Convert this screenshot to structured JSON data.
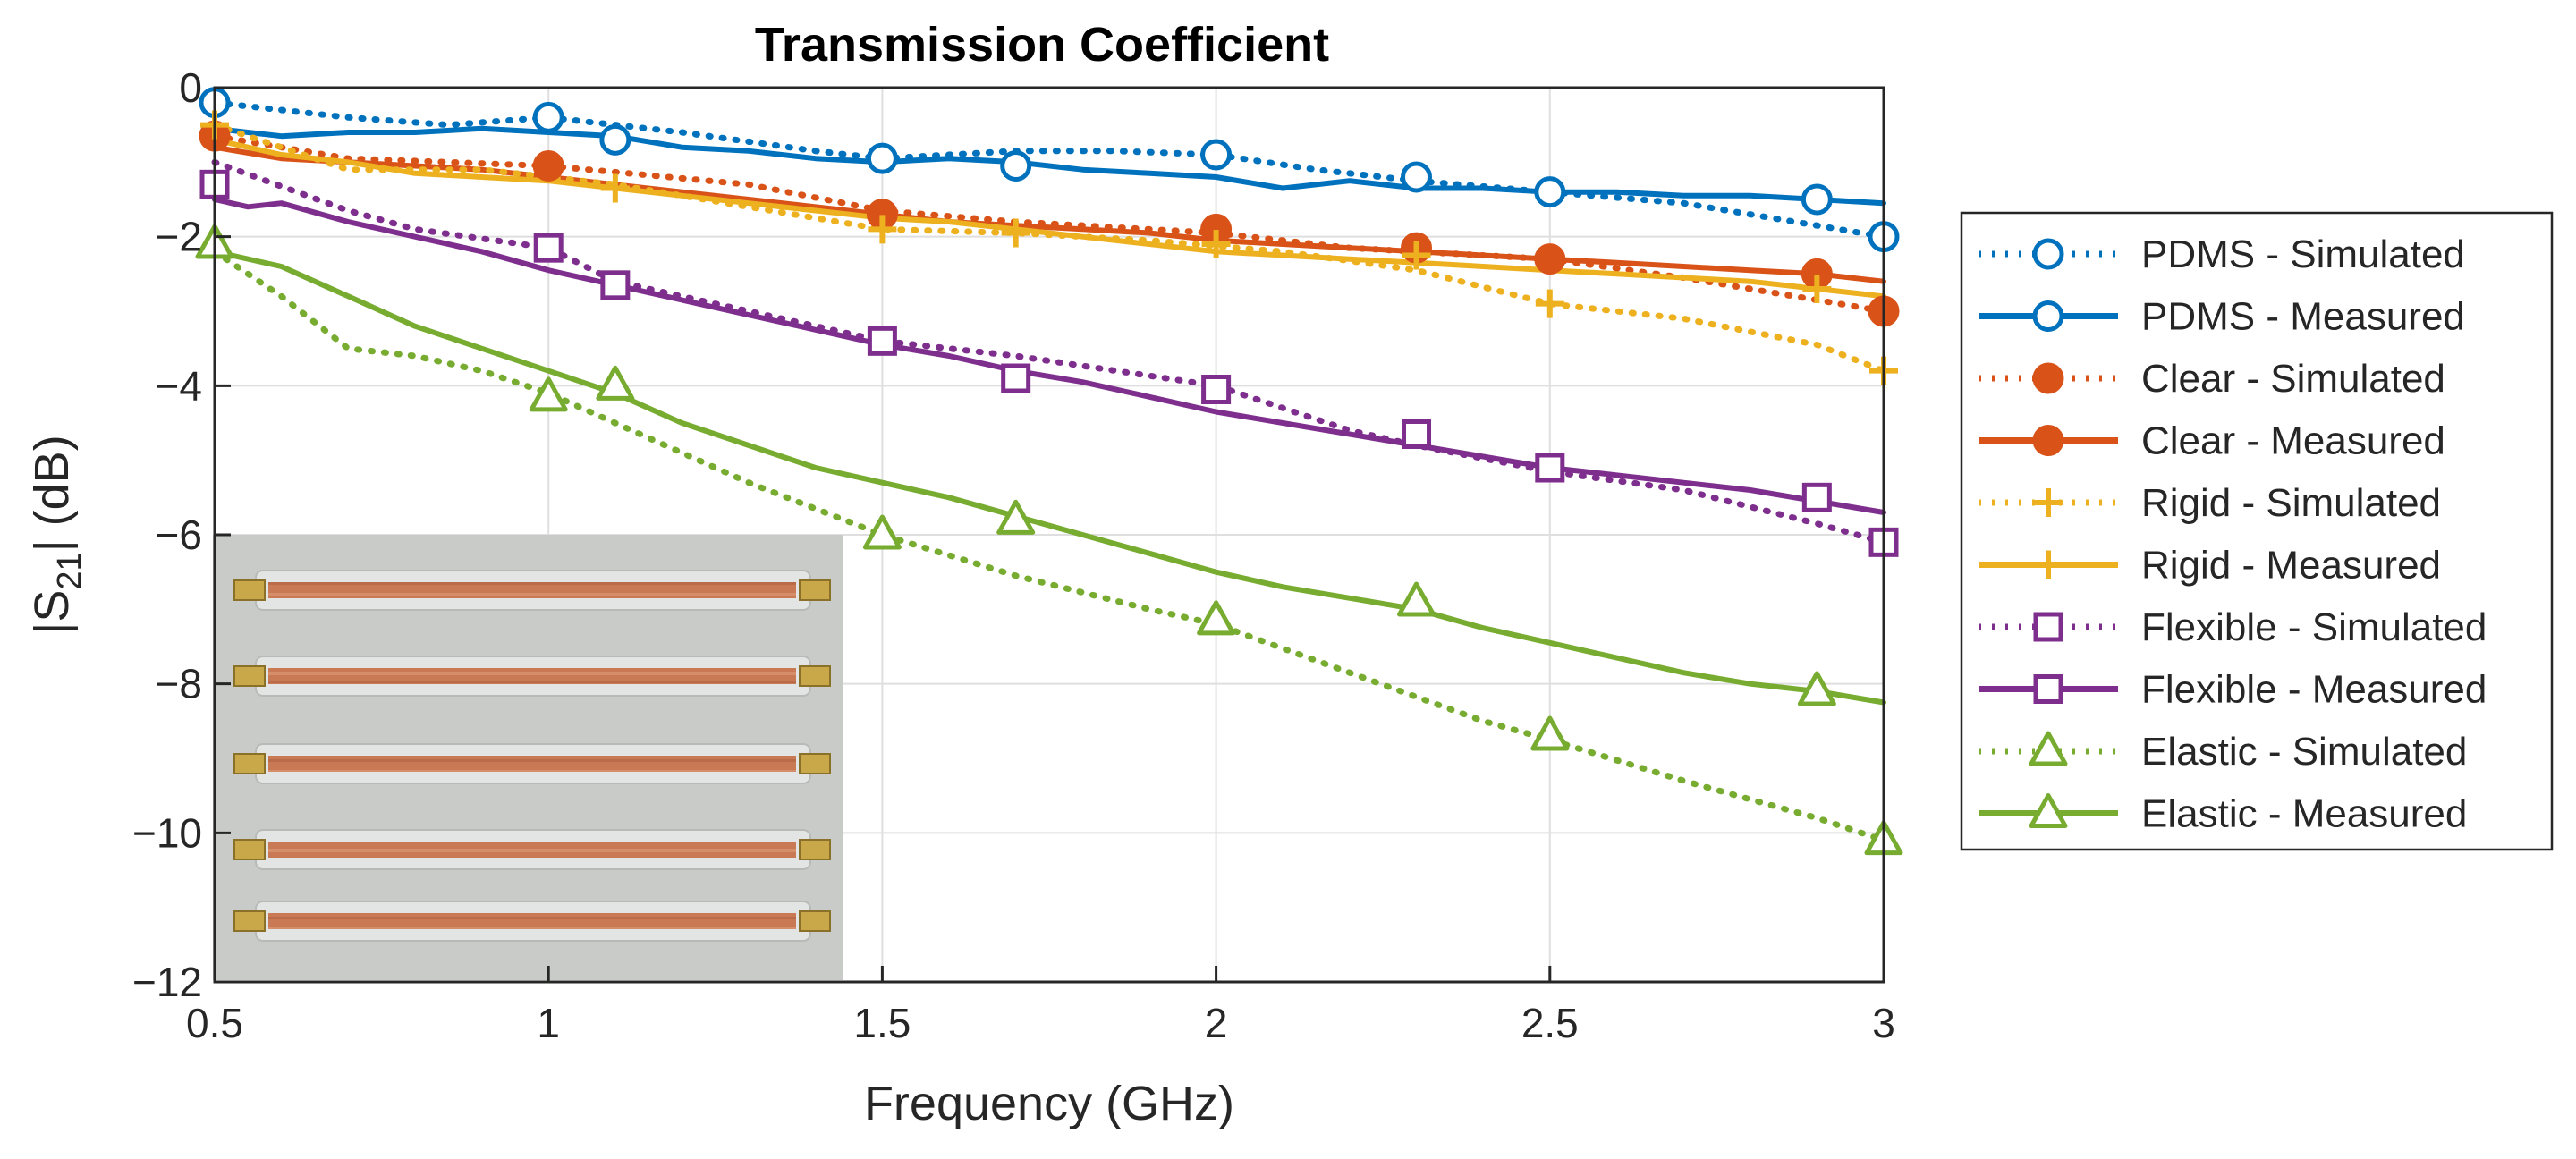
{
  "chart_data": {
    "type": "line",
    "title": "Transmission Coefficient",
    "xlabel": "Frequency (GHz)",
    "ylabel_parts": [
      "|S",
      "21",
      "| (dB)"
    ],
    "xlim": [
      0.5,
      3
    ],
    "ylim": [
      -12,
      0
    ],
    "xticks": [
      0.5,
      1,
      1.5,
      2,
      2.5,
      3
    ],
    "yticks": [
      -12,
      -10,
      -8,
      -6,
      -4,
      -2,
      0
    ],
    "xtick_labels": [
      "0.5",
      "1",
      "1.5",
      "2",
      "2.5",
      "3"
    ],
    "ytick_labels": [
      "−12",
      "−10",
      "−8",
      "−6",
      "−4",
      "−2",
      "0"
    ],
    "grid": true,
    "legend_position": "outside-right",
    "inset": "photo of five copper transmission-line test strips with SMA connectors",
    "series": [
      {
        "name": "PDMS - Simulated",
        "color": "#0072BD",
        "style": "dotted",
        "marker": "circle",
        "marker_fill": false,
        "x": [
          0.5,
          0.7,
          0.85,
          1.0,
          1.2,
          1.4,
          1.5,
          1.6,
          1.7,
          1.85,
          2.0,
          2.15,
          2.3,
          2.5,
          2.7,
          2.9,
          3.0
        ],
        "y": [
          -0.2,
          -0.4,
          -0.5,
          -0.4,
          -0.6,
          -0.85,
          -0.95,
          -0.9,
          -0.85,
          -0.85,
          -0.9,
          -1.1,
          -1.25,
          -1.4,
          -1.55,
          -1.85,
          -2.0
        ],
        "markers_x": [
          0.5,
          1.0,
          1.1,
          1.5,
          1.7,
          2.0,
          2.3,
          2.5,
          2.9,
          3.0
        ],
        "markers_y": [
          -0.2,
          -0.4,
          -0.7,
          -0.95,
          -1.05,
          -0.9,
          -1.2,
          -1.4,
          -1.5,
          -2.0
        ]
      },
      {
        "name": "PDMS - Measured",
        "color": "#0072BD",
        "style": "solid",
        "marker": "circle",
        "marker_fill": false,
        "x": [
          0.5,
          0.6,
          0.7,
          0.8,
          0.9,
          1.0,
          1.1,
          1.2,
          1.3,
          1.4,
          1.5,
          1.6,
          1.7,
          1.8,
          1.9,
          2.0,
          2.1,
          2.2,
          2.3,
          2.4,
          2.5,
          2.6,
          2.7,
          2.8,
          2.9,
          3.0
        ],
        "y": [
          -0.55,
          -0.65,
          -0.6,
          -0.6,
          -0.55,
          -0.6,
          -0.65,
          -0.8,
          -0.85,
          -0.95,
          -1.0,
          -0.95,
          -1.0,
          -1.1,
          -1.15,
          -1.2,
          -1.35,
          -1.25,
          -1.35,
          -1.35,
          -1.4,
          -1.4,
          -1.45,
          -1.45,
          -1.5,
          -1.55
        ]
      },
      {
        "name": "Clear - Simulated",
        "color": "#D95319",
        "style": "dotted",
        "marker": "circle",
        "marker_fill": true,
        "x": [
          0.5,
          0.7,
          1.0,
          1.3,
          1.5,
          1.7,
          2.0,
          2.2,
          2.5,
          2.7,
          2.9,
          3.0
        ],
        "y": [
          -0.65,
          -0.95,
          -1.05,
          -1.3,
          -1.65,
          -1.8,
          -1.95,
          -2.15,
          -2.3,
          -2.55,
          -2.85,
          -3.0
        ],
        "markers_x": [
          0.5,
          1.0,
          1.5,
          2.0,
          2.3,
          2.5,
          2.9,
          3.0
        ],
        "markers_y": [
          -0.65,
          -1.05,
          -1.7,
          -1.9,
          -2.15,
          -2.3,
          -2.5,
          -3.0
        ]
      },
      {
        "name": "Clear - Measured",
        "color": "#D95319",
        "style": "solid",
        "marker": "circle",
        "marker_fill": true,
        "x": [
          0.5,
          0.6,
          0.7,
          0.8,
          0.9,
          1.0,
          1.1,
          1.2,
          1.3,
          1.4,
          1.5,
          1.6,
          1.7,
          1.8,
          1.9,
          2.0,
          2.1,
          2.2,
          2.3,
          2.4,
          2.5,
          2.6,
          2.7,
          2.8,
          2.9,
          3.0
        ],
        "y": [
          -0.8,
          -0.95,
          -1.0,
          -1.05,
          -1.1,
          -1.2,
          -1.3,
          -1.4,
          -1.5,
          -1.6,
          -1.7,
          -1.8,
          -1.85,
          -1.9,
          -1.95,
          -2.05,
          -2.1,
          -2.15,
          -2.2,
          -2.25,
          -2.3,
          -2.35,
          -2.4,
          -2.45,
          -2.5,
          -2.6
        ]
      },
      {
        "name": "Rigid - Simulated",
        "color": "#EDB120",
        "style": "dotted",
        "marker": "plus",
        "marker_fill": false,
        "x": [
          0.5,
          0.7,
          0.9,
          1.1,
          1.3,
          1.5,
          1.7,
          1.9,
          2.1,
          2.3,
          2.5,
          2.7,
          2.9,
          3.0
        ],
        "y": [
          -0.5,
          -1.1,
          -1.1,
          -1.3,
          -1.6,
          -1.9,
          -1.95,
          -2.05,
          -2.2,
          -2.45,
          -2.9,
          -3.1,
          -3.45,
          -3.8
        ],
        "markers_x": [
          0.5,
          1.1,
          1.5,
          1.7,
          2.0,
          2.3,
          2.5,
          2.9,
          3.0
        ],
        "markers_y": [
          -0.5,
          -1.35,
          -1.9,
          -1.95,
          -2.1,
          -2.25,
          -2.9,
          -2.7,
          -3.8
        ]
      },
      {
        "name": "Rigid - Measured",
        "color": "#EDB120",
        "style": "solid",
        "marker": "plus",
        "marker_fill": false,
        "x": [
          0.5,
          0.6,
          0.7,
          0.8,
          0.9,
          1.0,
          1.1,
          1.2,
          1.3,
          1.4,
          1.5,
          1.6,
          1.7,
          1.8,
          1.9,
          2.0,
          2.1,
          2.2,
          2.3,
          2.4,
          2.5,
          2.6,
          2.7,
          2.8,
          2.9,
          3.0
        ],
        "y": [
          -0.7,
          -0.9,
          -1.0,
          -1.15,
          -1.2,
          -1.25,
          -1.35,
          -1.45,
          -1.55,
          -1.65,
          -1.75,
          -1.8,
          -1.9,
          -2.0,
          -2.1,
          -2.2,
          -2.25,
          -2.3,
          -2.35,
          -2.4,
          -2.45,
          -2.5,
          -2.55,
          -2.6,
          -2.7,
          -2.8
        ]
      },
      {
        "name": "Flexible - Simulated",
        "color": "#7E2F8E",
        "style": "dotted",
        "marker": "square",
        "marker_fill": false,
        "x": [
          0.5,
          0.7,
          0.8,
          1.0,
          1.1,
          1.3,
          1.5,
          1.7,
          2.0,
          2.2,
          2.3,
          2.5,
          2.7,
          2.9,
          3.0
        ],
        "y": [
          -1.0,
          -1.65,
          -1.9,
          -2.15,
          -2.6,
          -3.0,
          -3.4,
          -3.6,
          -4.0,
          -4.6,
          -4.8,
          -5.15,
          -5.4,
          -5.85,
          -6.1
        ],
        "markers_x": [
          0.5,
          1.0,
          1.1,
          1.5,
          1.7,
          2.0,
          2.3,
          2.5,
          2.9,
          3.0
        ],
        "markers_y": [
          -1.3,
          -2.15,
          -2.65,
          -3.4,
          -3.9,
          -4.05,
          -4.65,
          -5.1,
          -5.5,
          -6.1
        ]
      },
      {
        "name": "Flexible - Measured",
        "color": "#7E2F8E",
        "style": "solid",
        "marker": "square",
        "marker_fill": false,
        "x": [
          0.5,
          0.55,
          0.6,
          0.7,
          0.8,
          0.9,
          1.0,
          1.1,
          1.2,
          1.3,
          1.4,
          1.5,
          1.6,
          1.7,
          1.8,
          1.9,
          2.0,
          2.1,
          2.2,
          2.3,
          2.4,
          2.5,
          2.6,
          2.7,
          2.8,
          2.9,
          3.0
        ],
        "y": [
          -1.5,
          -1.6,
          -1.55,
          -1.8,
          -2.0,
          -2.2,
          -2.45,
          -2.65,
          -2.85,
          -3.05,
          -3.25,
          -3.45,
          -3.6,
          -3.8,
          -3.95,
          -4.15,
          -4.35,
          -4.5,
          -4.65,
          -4.8,
          -4.95,
          -5.1,
          -5.2,
          -5.3,
          -5.4,
          -5.55,
          -5.7
        ]
      },
      {
        "name": "Elastic - Simulated",
        "color": "#77AC30",
        "style": "dotted",
        "marker": "triangle",
        "marker_fill": false,
        "x": [
          0.5,
          0.6,
          0.7,
          0.8,
          0.9,
          1.0,
          1.1,
          1.3,
          1.5,
          1.7,
          1.9,
          2.0,
          2.2,
          2.4,
          2.5,
          2.7,
          2.9,
          3.0
        ],
        "y": [
          -2.2,
          -2.8,
          -3.5,
          -3.6,
          -3.8,
          -4.1,
          -4.5,
          -5.3,
          -6.0,
          -6.55,
          -7.0,
          -7.2,
          -7.85,
          -8.5,
          -8.75,
          -9.3,
          -9.8,
          -10.1
        ],
        "markers_x": [
          0.5,
          1.0,
          1.1,
          1.5,
          1.7,
          2.0,
          2.3,
          2.5,
          2.9,
          3.0
        ],
        "markers_y": [
          -2.1,
          -4.15,
          -4.0,
          -6.0,
          -5.8,
          -7.15,
          -6.9,
          -8.7,
          -8.1,
          -10.1
        ]
      },
      {
        "name": "Elastic - Measured",
        "color": "#77AC30",
        "style": "solid",
        "marker": "triangle",
        "marker_fill": false,
        "x": [
          0.5,
          0.6,
          0.7,
          0.8,
          0.9,
          1.0,
          1.1,
          1.2,
          1.3,
          1.4,
          1.5,
          1.6,
          1.7,
          1.8,
          1.9,
          2.0,
          2.1,
          2.2,
          2.3,
          2.4,
          2.5,
          2.6,
          2.7,
          2.8,
          2.9,
          3.0
        ],
        "y": [
          -2.2,
          -2.4,
          -2.8,
          -3.2,
          -3.5,
          -3.8,
          -4.1,
          -4.5,
          -4.8,
          -5.1,
          -5.3,
          -5.5,
          -5.75,
          -6.0,
          -6.25,
          -6.5,
          -6.7,
          -6.85,
          -7.0,
          -7.25,
          -7.45,
          -7.65,
          -7.85,
          -8.0,
          -8.1,
          -8.25
        ]
      }
    ]
  }
}
